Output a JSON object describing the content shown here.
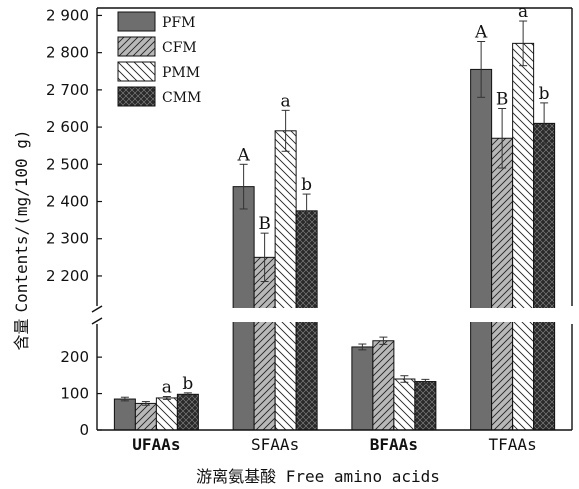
{
  "chart_data": {
    "type": "bar",
    "xlabel": "游离氨基酸 Free amino acids",
    "ylabel_cn": "含量",
    "ylabel_en": "Contents/(mg/100 g)",
    "categories": [
      "UFAAs",
      "SFAAs",
      "BFAAs",
      "TFAAs"
    ],
    "bold_categories": [
      "UFAAs",
      "BFAAs"
    ],
    "axis_break": true,
    "lower_ylim": [
      0,
      280
    ],
    "lower_ticks": [
      0,
      100,
      200
    ],
    "lower_tick_labels": [
      "0",
      "100",
      "200"
    ],
    "upper_ylim": [
      2130,
      2920
    ],
    "upper_ticks": [
      2200,
      2300,
      2400,
      2500,
      2600,
      2700,
      2800,
      2900
    ],
    "upper_tick_labels": [
      "2 200",
      "2 300",
      "2 400",
      "2 500",
      "2 600",
      "2 700",
      "2 800",
      "2 900"
    ],
    "legend_position": "top-left",
    "series": [
      {
        "name": "PFM",
        "pattern": "solid",
        "color": "#6e6e6e",
        "values": [
          85,
          2440,
          228,
          2755
        ],
        "errors": [
          5,
          60,
          8,
          75
        ]
      },
      {
        "name": "CFM",
        "pattern": "hatch-forward",
        "color": "#b0b0b0",
        "values": [
          73,
          2250,
          245,
          2570
        ],
        "errors": [
          5,
          65,
          10,
          80
        ]
      },
      {
        "name": "PMM",
        "pattern": "hatch-back",
        "color": "#ffffff",
        "values": [
          88,
          2590,
          140,
          2825
        ],
        "errors": [
          4,
          55,
          9,
          60
        ]
      },
      {
        "name": "CMM",
        "pattern": "crosshatch",
        "color": "#2a2a2a",
        "values": [
          98,
          2375,
          133,
          2610
        ],
        "errors": [
          4,
          45,
          6,
          55
        ]
      }
    ],
    "annotations": [
      {
        "category": 0,
        "series": 2,
        "text": "a"
      },
      {
        "category": 0,
        "series": 3,
        "text": "b"
      },
      {
        "category": 1,
        "series": 0,
        "text": "A"
      },
      {
        "category": 1,
        "series": 1,
        "text": "B"
      },
      {
        "category": 1,
        "series": 2,
        "text": "a"
      },
      {
        "category": 1,
        "series": 3,
        "text": "b"
      },
      {
        "category": 3,
        "series": 0,
        "text": "A"
      },
      {
        "category": 3,
        "series": 1,
        "text": "B"
      },
      {
        "category": 3,
        "series": 2,
        "text": "a"
      },
      {
        "category": 3,
        "series": 3,
        "text": "b"
      }
    ]
  }
}
